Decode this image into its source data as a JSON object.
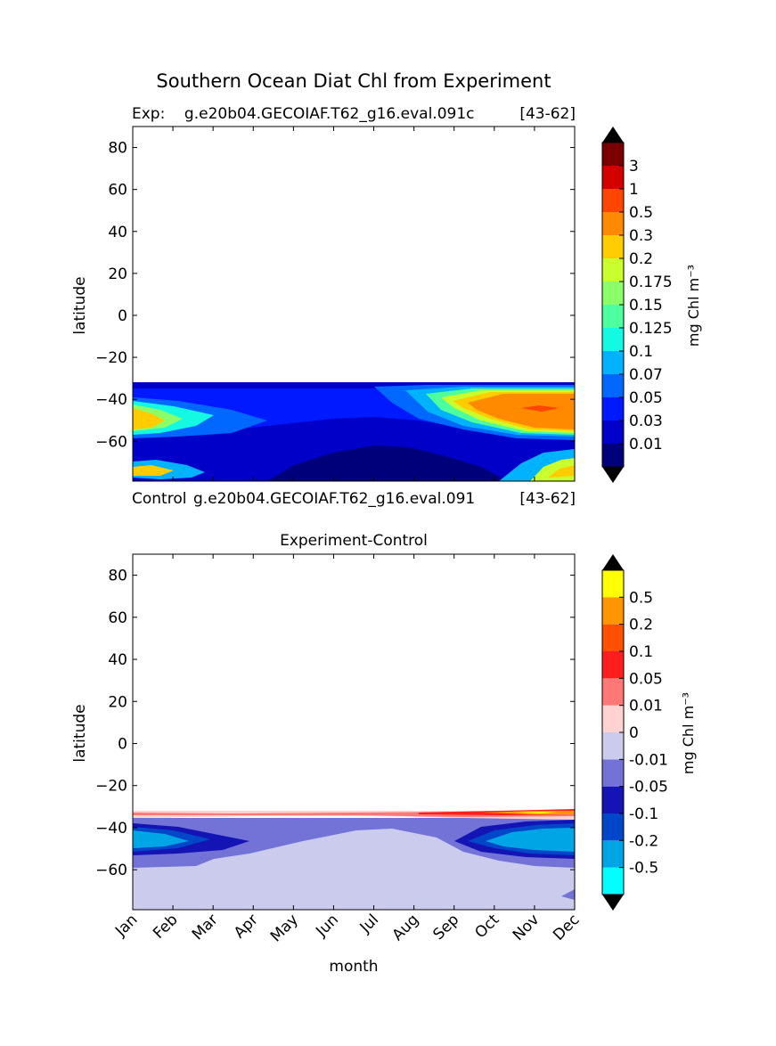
{
  "figure": {
    "suptitle": "Southern Ocean Diat Chl from Experiment"
  },
  "chart_data": [
    {
      "type": "heatmap",
      "panel": "experiment",
      "title_left": "Exp:    g.e20b04.GECOIAF.T62_g16.eval.091c",
      "title_right": "[43-62]",
      "below_left": "Control",
      "below_mid": "g.e20b04.GECOIAF.T62_g16.eval.091",
      "below_right": "[43-62]",
      "xlabel": "",
      "ylabel": "latitude",
      "xlim": [
        0,
        11
      ],
      "ylim": [
        -79,
        90
      ],
      "yticks": [
        "80",
        "60",
        "40",
        "20",
        "0",
        "−20",
        "−40",
        "−60"
      ],
      "ytick_values": [
        80,
        60,
        40,
        20,
        0,
        -20,
        -40,
        -60
      ],
      "data_lat_range": [
        -79,
        -32
      ],
      "colorbar": {
        "label": "mg Chl m⁻³",
        "levels": [
          "0.01",
          "0.03",
          "0.05",
          "0.07",
          "0.1",
          "0.125",
          "0.15",
          "0.175",
          "0.2",
          "0.3",
          "0.5",
          "1",
          "3"
        ],
        "colors": [
          "#00007a",
          "#0000c8",
          "#0019ff",
          "#0067ff",
          "#00b2ff",
          "#14f9e2",
          "#4dff9f",
          "#8aff6a",
          "#c8ff2d",
          "#ffcc00",
          "#ff8a00",
          "#ff4500",
          "#d40000",
          "#7a0000"
        ],
        "extend": "both"
      }
    },
    {
      "type": "heatmap",
      "panel": "difference",
      "title": "Experiment-Control",
      "xlabel": "month",
      "ylabel": "latitude",
      "xlim": [
        0,
        11
      ],
      "ylim": [
        -79,
        90
      ],
      "categories": [
        "Jan",
        "Feb",
        "Mar",
        "Apr",
        "May",
        "Jun",
        "Jul",
        "Aug",
        "Sep",
        "Oct",
        "Nov",
        "Dec"
      ],
      "yticks": [
        "80",
        "60",
        "40",
        "20",
        "0",
        "−20",
        "−40",
        "−60"
      ],
      "ytick_values": [
        80,
        60,
        40,
        20,
        0,
        -20,
        -40,
        -60
      ],
      "data_lat_range": [
        -79,
        -32
      ],
      "colorbar": {
        "label": "mg Chl m⁻³",
        "levels": [
          "-0.5",
          "-0.2",
          "-0.1",
          "-0.05",
          "-0.01",
          "0",
          "0.01",
          "0.05",
          "0.1",
          "0.2",
          "0.5"
        ],
        "colors": [
          "#00ffff",
          "#00a5e6",
          "#0046c8",
          "#1414b4",
          "#7373d7",
          "#cbcbee",
          "#ffd2d2",
          "#ff7878",
          "#ff1e1e",
          "#ff5000",
          "#ff9600",
          "#ffff00"
        ],
        "extend": "both"
      }
    }
  ]
}
